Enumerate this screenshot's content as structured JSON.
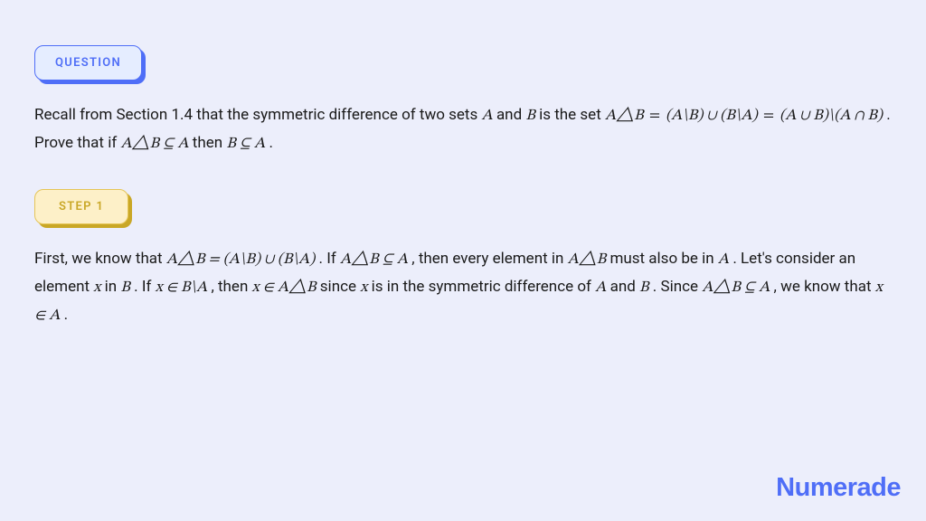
{
  "colors": {
    "page_bg": "#eceefb",
    "question_bg": "#e5edff",
    "question_border": "#4f6ef7",
    "question_text": "#4f6ef7",
    "question_shadow": "#4f6ef7",
    "step_bg": "#fdf0c8",
    "step_border": "#e5c558",
    "step_text": "#c9a726",
    "step_shadow": "#c9a726",
    "body_text": "#1a1a1a",
    "logo_color": "#4f6ef7"
  },
  "typography": {
    "body_fontsize": 17,
    "body_lineheight": 1.7,
    "badge_fontsize": 13,
    "badge_letter_spacing": 1.3,
    "logo_fontsize": 25
  },
  "badges": {
    "question_label": "QUESTION",
    "step1_label": "STEP 1"
  },
  "question": {
    "prefix": "Recall from Section 1.4 that the symmetric difference of two sets ",
    "A": "A",
    "and": " and ",
    "B": "B",
    "is_the_set": " is the set ",
    "eq_lhs": "A△B",
    "eq_eq1": " = ",
    "eq_p1": "(A\\B) ∪ (B\\A)",
    "eq_eq2": " = ",
    "eq_p2": "(A ∪ B)\\(A ∩ B)",
    "prove_prefix": ". Prove that if ",
    "subset1": "A△B ⊆ A",
    "then": " then ",
    "subset2": "B ⊆ A",
    "period": "."
  },
  "step1": {
    "s1": "First, we know that ",
    "m1": "A△B = (A\\B) ∪ (B\\A)",
    "s2": ". If ",
    "m2": "A△B ⊆ A",
    "s3": ", then every element in ",
    "m3": "A△B",
    "s4": " must also be in ",
    "m4": "A",
    "s5": ". Let's consider an element ",
    "m5": "x",
    "s6": " in ",
    "m6": "B",
    "s7": ". If ",
    "m7": "x ∈ B\\A",
    "s8": ", then ",
    "m8": "x ∈ A△B",
    "s9": " since ",
    "m9": "x",
    "s10": " is in the symmetric difference of ",
    "m10": "A",
    "s11": " and ",
    "m11": "B",
    "s12": ". Since ",
    "m12": "A△B ⊆ A",
    "s13": ", we know that ",
    "m13": "x ∈ A",
    "s14": "."
  },
  "logo": {
    "text": "Numerade"
  }
}
